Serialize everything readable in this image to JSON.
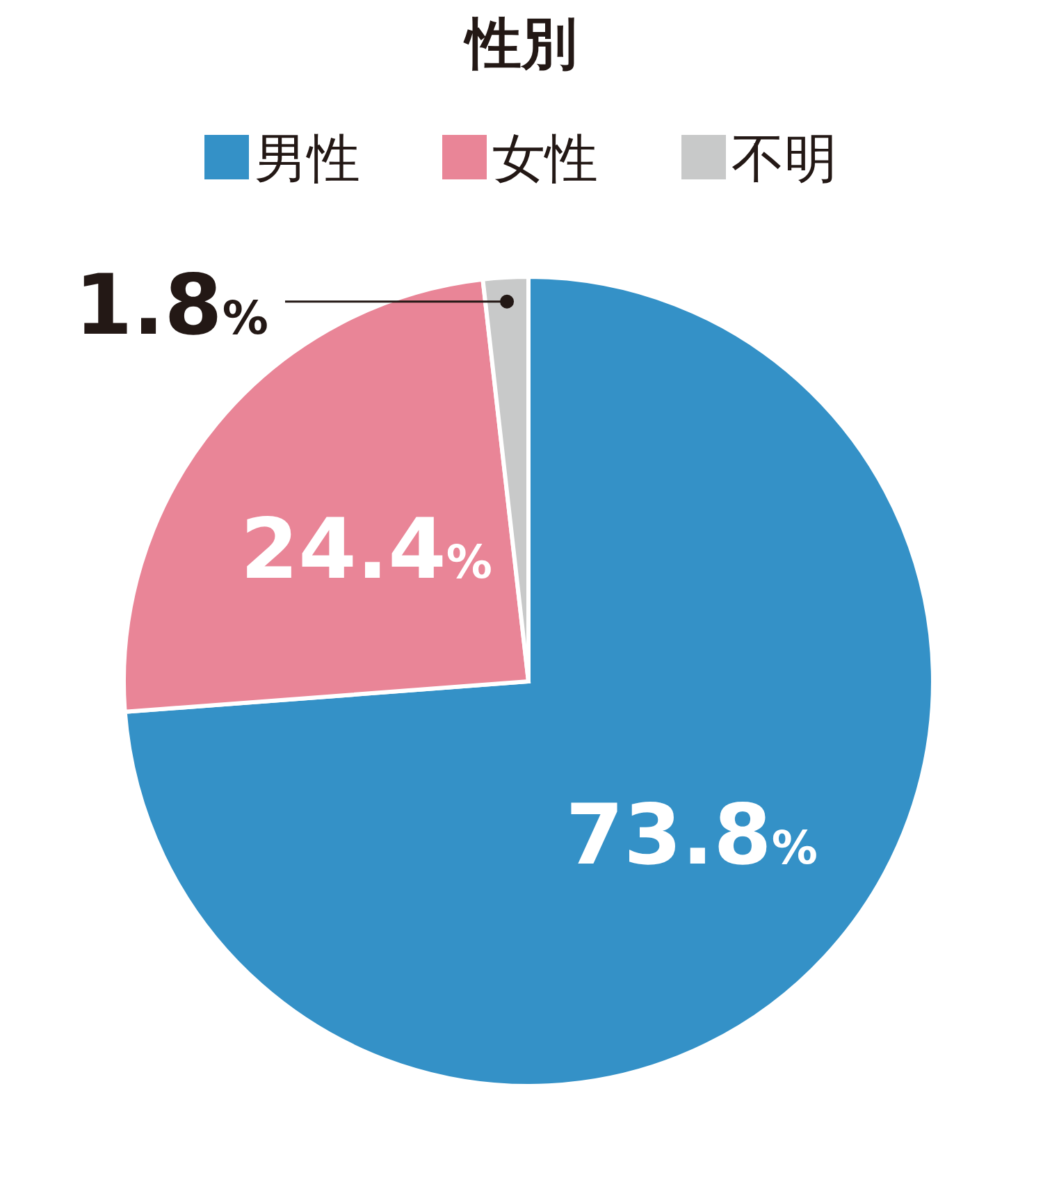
{
  "chart_data": {
    "type": "pie",
    "title": "性別",
    "legend": "top",
    "categories": [
      "男性",
      "女性",
      "不明"
    ],
    "values": [
      73.8,
      24.4,
      1.8
    ],
    "colors": [
      "#3491c7",
      "#e98597",
      "#c8c9c9"
    ],
    "value_labels": [
      "73.8%",
      "24.4%",
      "1.8%"
    ]
  }
}
